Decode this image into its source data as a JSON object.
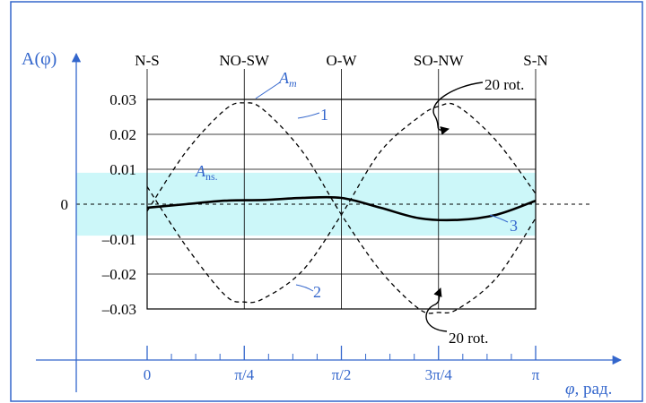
{
  "chart_data": {
    "type": "line",
    "title": "",
    "ylabel": "A(φ)",
    "xlabel_symbol": "φ,",
    "xlabel_unit": "рад.",
    "xlim": [
      0,
      3.14159
    ],
    "ylim": [
      -0.03,
      0.03
    ],
    "x_ticks": [
      {
        "value": 0,
        "label": "0"
      },
      {
        "value": 0.7854,
        "label": "π/4"
      },
      {
        "value": 1.5708,
        "label": "π/2"
      },
      {
        "value": 2.3562,
        "label": "3π/4"
      },
      {
        "value": 3.14159,
        "label": "π"
      }
    ],
    "y_ticks": [
      {
        "value": 0.03,
        "label": "0.03"
      },
      {
        "value": 0.02,
        "label": "0.02"
      },
      {
        "value": 0.01,
        "label": "0.01"
      },
      {
        "value": 0,
        "label": "0"
      },
      {
        "value": -0.01,
        "label": "–0.01"
      },
      {
        "value": -0.02,
        "label": "–0.02"
      },
      {
        "value": -0.03,
        "label": "–0.03"
      }
    ],
    "direction_labels": [
      {
        "value": 0,
        "label": "N-S"
      },
      {
        "value": 0.7854,
        "label": "NO-SW"
      },
      {
        "value": 1.5708,
        "label": "O-W"
      },
      {
        "value": 2.3562,
        "label": "SO-NW"
      },
      {
        "value": 3.14159,
        "label": "S-N"
      }
    ],
    "band": {
      "y_min": -0.009,
      "y_max": 0.009,
      "color": "#ccf7f9",
      "label_main": "A",
      "label_sub": "ns."
    },
    "grid": true,
    "series": [
      {
        "name": "1",
        "style": "dashed",
        "x": [
          0,
          0.314,
          0.628,
          0.785,
          0.942,
          1.257,
          1.571,
          1.885,
          2.199,
          2.356,
          2.513,
          2.827,
          3.142
        ],
        "values": [
          -0.002,
          0.015,
          0.027,
          0.029,
          0.027,
          0.015,
          -0.003,
          -0.019,
          -0.03,
          -0.031,
          -0.03,
          -0.021,
          -0.004
        ]
      },
      {
        "name": "2",
        "style": "dashed",
        "x": [
          0,
          0.314,
          0.628,
          0.785,
          0.942,
          1.257,
          1.571,
          1.885,
          2.199,
          2.356,
          2.513,
          2.827,
          3.142
        ],
        "values": [
          0.005,
          -0.012,
          -0.026,
          -0.028,
          -0.027,
          -0.019,
          -0.003,
          0.015,
          0.025,
          0.028,
          0.028,
          0.018,
          0.003
        ]
      },
      {
        "name": "3",
        "style": "solid",
        "x": [
          0,
          0.314,
          0.628,
          0.942,
          1.257,
          1.571,
          1.885,
          2.199,
          2.513,
          2.827,
          3.142
        ],
        "values": [
          -0.001,
          0,
          0.001,
          0.0012,
          0.0018,
          0.0018,
          -0.001,
          -0.004,
          -0.0045,
          -0.003,
          0.001
        ]
      }
    ],
    "annotations": [
      {
        "id": "am",
        "main": "A",
        "sub": "m"
      },
      {
        "id": "rot-top",
        "text": "20 rot."
      },
      {
        "id": "rot-bottom",
        "text": "20 rot."
      }
    ],
    "colors": {
      "frame": "#3366cc",
      "axis": "#3366cc",
      "label_blue": "#3366cc",
      "curves": "#000000",
      "band": "#ccf7f9"
    }
  }
}
